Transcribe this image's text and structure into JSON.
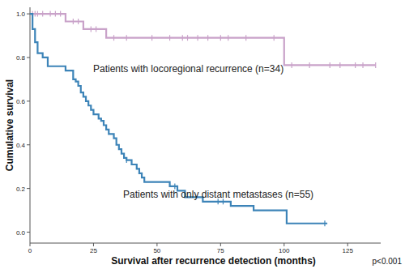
{
  "chart_data": {
    "type": "line",
    "line_style": "step",
    "marker": "censor",
    "x_label": "Survival after recurrence detection (months)",
    "y_label": "Cumulative survival",
    "annotations": [
      "p<0.001"
    ],
    "xlim": [
      0,
      138
    ],
    "ylim": [
      -0.05,
      1.03
    ],
    "xticks": [
      0,
      25,
      50,
      75,
      100,
      125
    ],
    "yticks": [
      {
        "value": 0,
        "label": "0.0"
      },
      0.2,
      0.4,
      0.6,
      0.8,
      {
        "value": 1,
        "label": "1.0"
      }
    ],
    "grid": false,
    "series": [
      {
        "name": "Patients with locoregional recurrence (n=34)",
        "color": "#c9a2c9",
        "x": [
          0,
          14,
          21,
          30,
          100,
          136
        ],
        "values": [
          1.0,
          0.965,
          0.93,
          0.89,
          0.765,
          0.765
        ],
        "censored_x": [
          1,
          2,
          3,
          5,
          8,
          10,
          12,
          17,
          19,
          24,
          26,
          33,
          38,
          48,
          55,
          60,
          62,
          66,
          70,
          75,
          78,
          85,
          96,
          103,
          110,
          118,
          122,
          128,
          131,
          136
        ]
      },
      {
        "name": "Patients with only distant metastases (n=55)",
        "color": "#3d84b8",
        "x": [
          0,
          1,
          2,
          3,
          5,
          7,
          14,
          17,
          18,
          19,
          20,
          21,
          22,
          23,
          24,
          25,
          27,
          28,
          29,
          30,
          31,
          33,
          34,
          35,
          36,
          37,
          38,
          40,
          42,
          43,
          44,
          45,
          55,
          58,
          61,
          68,
          79,
          88,
          101,
          117
        ],
        "values": [
          1.0,
          0.93,
          0.87,
          0.82,
          0.8,
          0.76,
          0.74,
          0.7,
          0.69,
          0.67,
          0.64,
          0.62,
          0.6,
          0.58,
          0.56,
          0.54,
          0.52,
          0.51,
          0.49,
          0.47,
          0.45,
          0.43,
          0.4,
          0.38,
          0.36,
          0.34,
          0.33,
          0.31,
          0.29,
          0.27,
          0.25,
          0.23,
          0.21,
          0.19,
          0.16,
          0.14,
          0.12,
          0.1,
          0.04,
          0.04
        ],
        "censored_x": [
          38,
          57,
          74,
          76,
          116
        ]
      }
    ]
  }
}
